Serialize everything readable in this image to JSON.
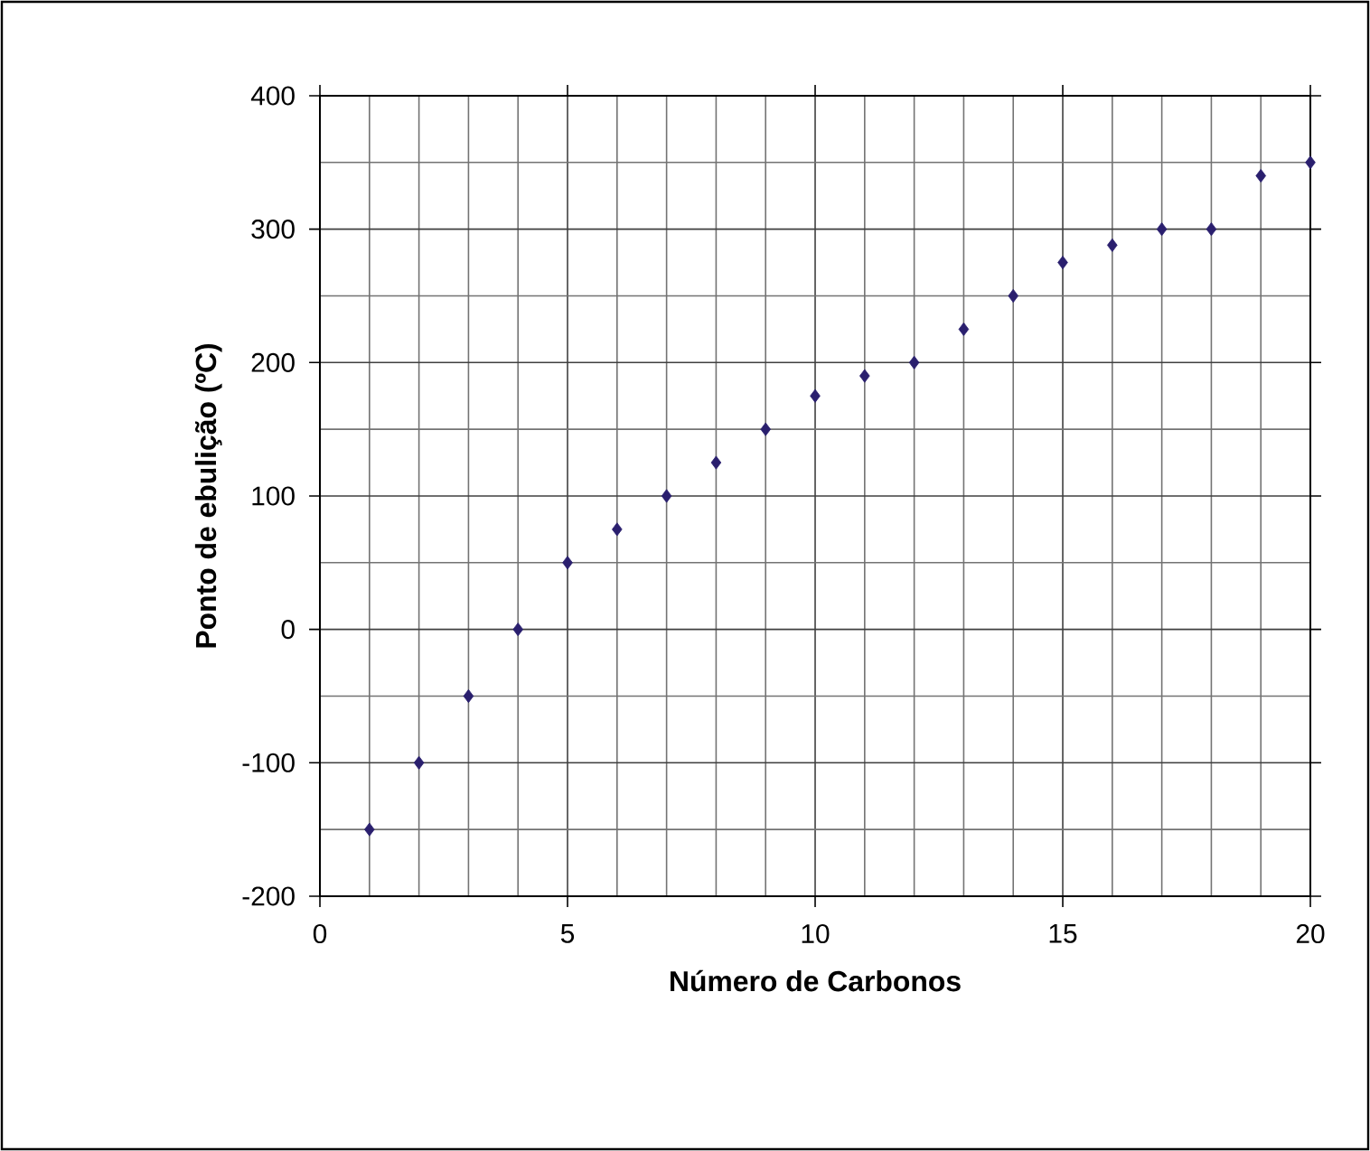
{
  "chart_data": {
    "type": "scatter",
    "xlabel": "Número de Carbonos",
    "ylabel": "Ponto de ebulição (ºC)",
    "x": [
      1,
      2,
      3,
      4,
      5,
      6,
      7,
      8,
      9,
      10,
      11,
      12,
      13,
      14,
      15,
      16,
      17,
      18,
      19,
      20
    ],
    "series": [
      {
        "color": "#2a1f6e",
        "values": [
          -150,
          -100,
          -50,
          0,
          50,
          75,
          100,
          125,
          150,
          175,
          190,
          200,
          225,
          250,
          275,
          288,
          300,
          300,
          340,
          350
        ]
      }
    ],
    "xlim": [
      0,
      20
    ],
    "xticks": [
      0,
      5,
      10,
      15,
      20
    ],
    "ylim": [
      -200,
      400
    ],
    "yticks": [
      -200,
      -100,
      0,
      100,
      200,
      300,
      400
    ],
    "grid": true,
    "marker": "diamond"
  }
}
